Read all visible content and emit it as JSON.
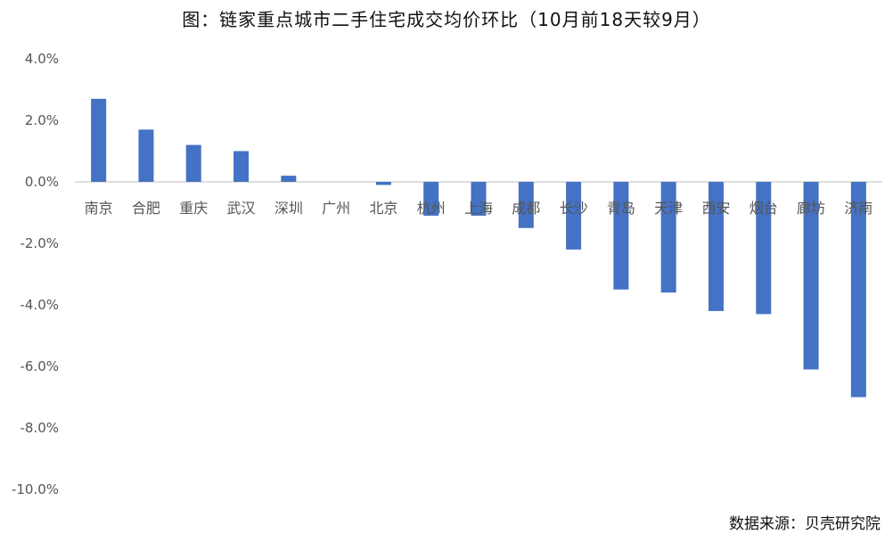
{
  "chart_data": {
    "type": "bar",
    "title": "图：链家重点城市二手住宅成交均价环比（10月前18天较9月）",
    "categories": [
      "南京",
      "合肥",
      "重庆",
      "武汉",
      "深圳",
      "广州",
      "北京",
      "杭州",
      "上海",
      "成都",
      "长沙",
      "青岛",
      "天津",
      "西安",
      "烟台",
      "廊坊",
      "济南"
    ],
    "values": [
      2.7,
      1.7,
      1.2,
      1.0,
      0.2,
      0.0,
      -0.1,
      -1.1,
      -1.1,
      -1.5,
      -2.2,
      -3.5,
      -3.6,
      -4.2,
      -4.3,
      -6.1,
      -7.0
    ],
    "ylim": [
      -10,
      4
    ],
    "yticks": [
      4,
      2,
      0,
      -2,
      -4,
      -6,
      -8,
      -10
    ],
    "ytick_labels": [
      "4.0%",
      "2.0%",
      "0.0%",
      "-2.0%",
      "-4.0%",
      "-6.0%",
      "-8.0%",
      "-10.0%"
    ],
    "xlabel": "",
    "ylabel": "",
    "grid": false,
    "bar_color": "#4472C4"
  },
  "source": "数据来源：贝壳研究院"
}
